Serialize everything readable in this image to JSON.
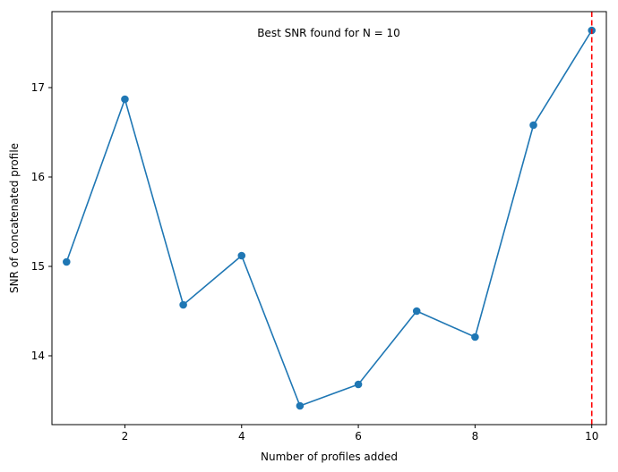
{
  "chart_data": {
    "type": "line",
    "title": "",
    "xlabel": "Number of profiles added",
    "ylabel": "SNR of concatenated profile",
    "annotation": "Best SNR found for N = 10",
    "x": [
      1,
      2,
      3,
      4,
      5,
      6,
      7,
      8,
      9,
      10
    ],
    "series": [
      {
        "values": [
          15.05,
          16.87,
          14.57,
          15.12,
          13.44,
          13.68,
          14.5,
          14.21,
          16.58,
          17.64
        ],
        "color": "#1f77b4",
        "marker": "circle"
      }
    ],
    "reference_line": {
      "orientation": "vertical",
      "x": 10,
      "color": "#ff0000",
      "style": "dashed"
    },
    "xlim": [
      0.75,
      10.25
    ],
    "ylim": [
      13.23,
      17.85
    ],
    "xticks": [
      2,
      4,
      6,
      8,
      10
    ],
    "yticks": [
      14,
      15,
      16,
      17
    ],
    "grid": false,
    "legend": "none"
  }
}
